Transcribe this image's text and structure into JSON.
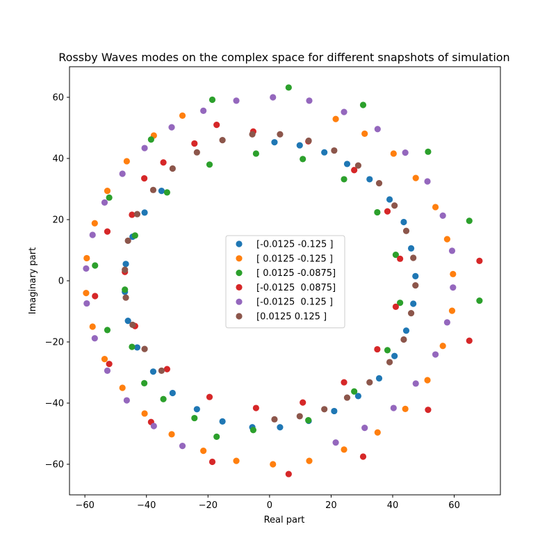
{
  "chart_data": {
    "type": "scatter",
    "title": "Rossby Waves modes on the complex space for different snapshots of simulation",
    "xlabel": "Real part",
    "ylabel": "Imaginary part",
    "xlim": [
      -65,
      75
    ],
    "ylim": [
      -70,
      70
    ],
    "xticks": [
      -60,
      -40,
      -20,
      0,
      20,
      40,
      60
    ],
    "yticks": [
      -60,
      -40,
      -20,
      0,
      20,
      40,
      60
    ],
    "grid": false,
    "legend_position": "center",
    "series": [
      {
        "name": "[-0.0125 -0.125 ]",
        "color": "#1f77b4",
        "points": [
          [
            47.4,
            1.5
          ],
          [
            46.7,
            -7.5
          ],
          [
            46.0,
            10.6
          ],
          [
            44.4,
            -16.3
          ],
          [
            43.6,
            19.2
          ],
          [
            40.6,
            -24.6
          ],
          [
            39.0,
            26.6
          ],
          [
            35.6,
            -31.9
          ],
          [
            32.5,
            33.2
          ],
          [
            28.8,
            -37.7
          ],
          [
            25.2,
            38.2
          ],
          [
            21.0,
            -42.6
          ],
          [
            17.8,
            42.0
          ],
          [
            12.7,
            -45.8
          ],
          [
            9.8,
            44.3
          ],
          [
            3.4,
            -47.9
          ],
          [
            1.6,
            45.3
          ],
          [
            -5.6,
            -47.9
          ],
          [
            -15.3,
            -46.0
          ],
          [
            -23.6,
            -42.0
          ],
          [
            -31.5,
            -36.7
          ],
          [
            -35.1,
            29.4
          ],
          [
            -37.8,
            -29.7
          ],
          [
            -40.6,
            22.3
          ],
          [
            -43.0,
            -21.8
          ],
          [
            -44.5,
            14.4
          ],
          [
            -46.0,
            -13.1
          ],
          [
            -46.7,
            5.5
          ],
          [
            -47.0,
            -3.6
          ]
        ]
      },
      {
        "name": "[ 0.0125 -0.125 ]",
        "color": "#ff7f0e",
        "points": [
          [
            59.6,
            2.2
          ],
          [
            59.3,
            -9.8
          ],
          [
            57.7,
            13.6
          ],
          [
            56.3,
            -21.3
          ],
          [
            53.9,
            24.1
          ],
          [
            51.3,
            -32.5
          ],
          [
            47.5,
            33.6
          ],
          [
            44.1,
            -41.9
          ],
          [
            40.3,
            41.6
          ],
          [
            35.1,
            -49.6
          ],
          [
            30.9,
            48.1
          ],
          [
            24.2,
            -55.2
          ],
          [
            21.5,
            52.9
          ],
          [
            12.9,
            -58.9
          ],
          [
            1.1,
            -60.0
          ],
          [
            -10.8,
            -58.9
          ],
          [
            -21.5,
            -55.6
          ],
          [
            -28.3,
            54.0
          ],
          [
            -31.8,
            -50.2
          ],
          [
            -37.6,
            47.5
          ],
          [
            -40.6,
            -43.4
          ],
          [
            -46.4,
            39.1
          ],
          [
            -47.8,
            -35.0
          ],
          [
            -52.7,
            29.4
          ],
          [
            -53.6,
            -25.6
          ],
          [
            -56.8,
            18.8
          ],
          [
            -57.5,
            -15.0
          ],
          [
            -59.4,
            7.4
          ],
          [
            -59.6,
            -4.0
          ]
        ]
      },
      {
        "name": "[ 0.0125 -0.0875]",
        "color": "#2ca02c",
        "points": [
          [
            68.2,
            -6.5
          ],
          [
            64.9,
            19.6
          ],
          [
            51.5,
            42.2
          ],
          [
            42.4,
            -7.2
          ],
          [
            41.0,
            8.5
          ],
          [
            38.3,
            -22.7
          ],
          [
            35.0,
            22.4
          ],
          [
            30.4,
            57.5
          ],
          [
            27.5,
            -36.2
          ],
          [
            24.2,
            33.2
          ],
          [
            12.6,
            -45.6
          ],
          [
            10.8,
            39.8
          ],
          [
            6.2,
            63.2
          ],
          [
            -4.4,
            41.6
          ],
          [
            -5.3,
            -48.8
          ],
          [
            -17.2,
            -51.0
          ],
          [
            -18.6,
            59.2
          ],
          [
            -19.5,
            38.0
          ],
          [
            -24.4,
            -44.9
          ],
          [
            -33.3,
            28.9
          ],
          [
            -34.5,
            -38.7
          ],
          [
            -38.5,
            46.2
          ],
          [
            -40.7,
            -33.5
          ],
          [
            -43.7,
            14.8
          ],
          [
            -44.7,
            -21.6
          ],
          [
            -47.0,
            -2.9
          ],
          [
            -52.1,
            27.2
          ],
          [
            -52.7,
            -16.1
          ],
          [
            -56.7,
            5.0
          ]
        ]
      },
      {
        "name": "[-0.0125  0.0875]",
        "color": "#d62728",
        "points": [
          [
            68.2,
            6.5
          ],
          [
            64.9,
            -19.6
          ],
          [
            51.5,
            -42.2
          ],
          [
            42.4,
            7.2
          ],
          [
            41.0,
            -8.5
          ],
          [
            38.3,
            22.7
          ],
          [
            35.0,
            -22.4
          ],
          [
            30.4,
            -57.5
          ],
          [
            27.5,
            36.2
          ],
          [
            24.2,
            -33.2
          ],
          [
            12.6,
            45.6
          ],
          [
            10.8,
            -39.8
          ],
          [
            6.2,
            -63.2
          ],
          [
            -4.4,
            -41.6
          ],
          [
            -5.3,
            48.8
          ],
          [
            -17.2,
            51.0
          ],
          [
            -18.6,
            -59.2
          ],
          [
            -19.5,
            -38.0
          ],
          [
            -24.4,
            44.9
          ],
          [
            -33.3,
            -28.9
          ],
          [
            -34.5,
            38.7
          ],
          [
            -38.5,
            -46.2
          ],
          [
            -40.7,
            33.5
          ],
          [
            -43.7,
            -14.8
          ],
          [
            -44.7,
            21.6
          ],
          [
            -47.0,
            2.9
          ],
          [
            -52.1,
            -27.2
          ],
          [
            -52.7,
            16.1
          ],
          [
            -56.7,
            -5.0
          ]
        ]
      },
      {
        "name": "[-0.0125  0.125 ]",
        "color": "#9467bd",
        "points": [
          [
            59.6,
            -2.2
          ],
          [
            59.3,
            9.8
          ],
          [
            57.7,
            -13.6
          ],
          [
            56.3,
            21.3
          ],
          [
            53.9,
            -24.1
          ],
          [
            51.3,
            32.5
          ],
          [
            47.5,
            -33.6
          ],
          [
            44.1,
            41.9
          ],
          [
            40.3,
            -41.6
          ],
          [
            35.1,
            49.6
          ],
          [
            30.9,
            -48.1
          ],
          [
            24.2,
            55.2
          ],
          [
            21.5,
            -52.9
          ],
          [
            12.9,
            58.9
          ],
          [
            1.1,
            60.0
          ],
          [
            -10.8,
            58.9
          ],
          [
            -21.5,
            55.6
          ],
          [
            -28.3,
            -54.0
          ],
          [
            -31.8,
            50.2
          ],
          [
            -37.6,
            -47.5
          ],
          [
            -40.6,
            43.4
          ],
          [
            -46.4,
            -39.1
          ],
          [
            -47.8,
            35.0
          ],
          [
            -52.7,
            -29.4
          ],
          [
            -53.6,
            25.6
          ],
          [
            -56.8,
            -18.8
          ],
          [
            -57.5,
            15.0
          ],
          [
            -59.4,
            -7.4
          ],
          [
            -59.6,
            4.0
          ]
        ]
      },
      {
        "name": "[0.0125 0.125 ]",
        "color": "#8c564b",
        "points": [
          [
            47.4,
            -1.5
          ],
          [
            46.7,
            7.5
          ],
          [
            46.0,
            -10.6
          ],
          [
            44.4,
            16.3
          ],
          [
            43.6,
            -19.2
          ],
          [
            40.6,
            24.6
          ],
          [
            39.0,
            -26.6
          ],
          [
            35.6,
            31.9
          ],
          [
            32.5,
            -33.2
          ],
          [
            28.8,
            37.7
          ],
          [
            25.2,
            -38.2
          ],
          [
            21.0,
            42.6
          ],
          [
            17.8,
            -42.0
          ],
          [
            12.7,
            45.8
          ],
          [
            9.8,
            -44.3
          ],
          [
            3.4,
            47.9
          ],
          [
            1.6,
            -45.3
          ],
          [
            -5.6,
            47.9
          ],
          [
            -15.3,
            46.0
          ],
          [
            -23.6,
            42.0
          ],
          [
            -31.5,
            36.7
          ],
          [
            -35.1,
            -29.4
          ],
          [
            -37.8,
            29.7
          ],
          [
            -40.6,
            -22.3
          ],
          [
            -43.0,
            21.8
          ],
          [
            -44.5,
            -14.4
          ],
          [
            -46.0,
            13.1
          ],
          [
            -46.7,
            -5.5
          ],
          [
            -47.0,
            3.6
          ]
        ]
      }
    ]
  }
}
